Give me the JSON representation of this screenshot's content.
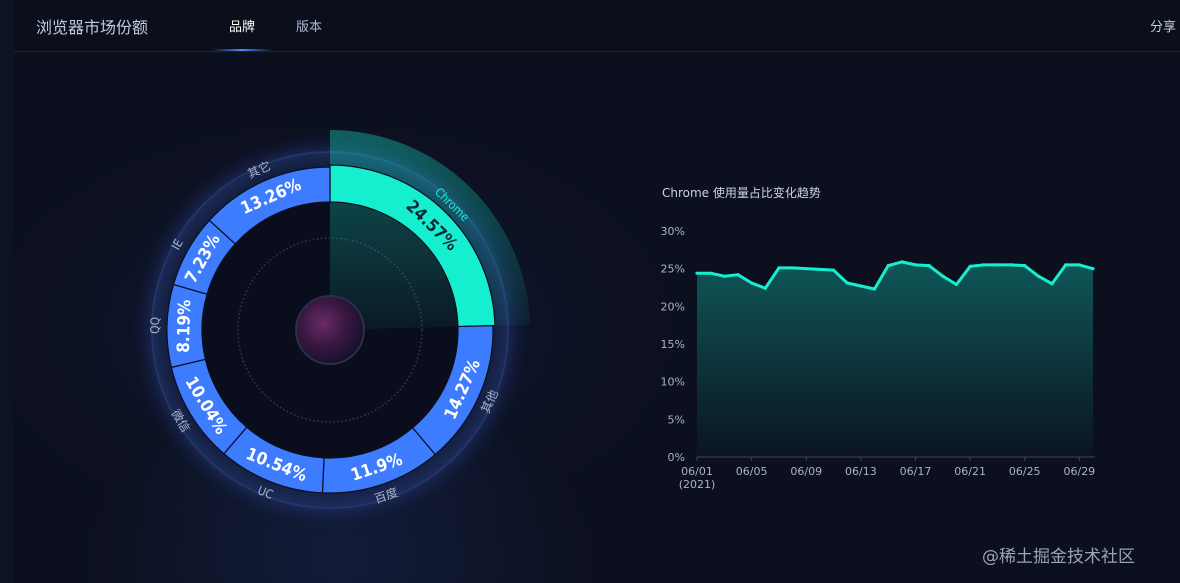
{
  "header": {
    "title": "浏览器市场份额",
    "tabs": [
      {
        "label": "品牌",
        "active": true
      },
      {
        "label": "版本",
        "active": false
      }
    ],
    "share_label": "分享"
  },
  "colors": {
    "accent_teal": "#16efcf",
    "segment_blue": "#3d7cff",
    "background": "#0b0f1e"
  },
  "chart_data": [
    {
      "type": "pie",
      "variant": "donut",
      "highlighted": "Chrome",
      "slices": [
        {
          "label": "Chrome",
          "value": 24.57,
          "value_label": "24.57%"
        },
        {
          "label": "其他",
          "value": 14.27,
          "value_label": "14.27%"
        },
        {
          "label": "百度",
          "value": 11.9,
          "value_label": "11.9%"
        },
        {
          "label": "UC",
          "value": 10.54,
          "value_label": "10.54%"
        },
        {
          "label": "微信",
          "value": 10.04,
          "value_label": "10.04%"
        },
        {
          "label": "QQ",
          "value": 8.19,
          "value_label": "8.19%"
        },
        {
          "label": "IE",
          "value": 7.23,
          "value_label": "7.23%"
        },
        {
          "label": "其它",
          "value": 13.26,
          "value_label": "13.26%"
        }
      ]
    },
    {
      "type": "area",
      "title": "Chrome 使用量占比变化趋势",
      "x_start": "2021-06-01",
      "x_ticks": [
        "06/01",
        "06/05",
        "06/09",
        "06/13",
        "06/17",
        "06/21",
        "06/25",
        "06/29"
      ],
      "x_first_sublabel": "(2021)",
      "y_ticks": [
        "0%",
        "5%",
        "10%",
        "15%",
        "20%",
        "25%",
        "30%"
      ],
      "ylim": [
        0,
        30
      ],
      "grid": false,
      "values": [
        24.4,
        24.4,
        24.0,
        24.2,
        23.1,
        22.4,
        25.1,
        25.1,
        25.0,
        24.9,
        24.8,
        23.1,
        22.7,
        22.3,
        25.4,
        25.9,
        25.5,
        25.4,
        24.0,
        22.9,
        25.3,
        25.5,
        25.5,
        25.5,
        25.4,
        24.0,
        23.0,
        25.5,
        25.5,
        25.0
      ]
    }
  ],
  "watermark": "@稀土掘金技术社区"
}
